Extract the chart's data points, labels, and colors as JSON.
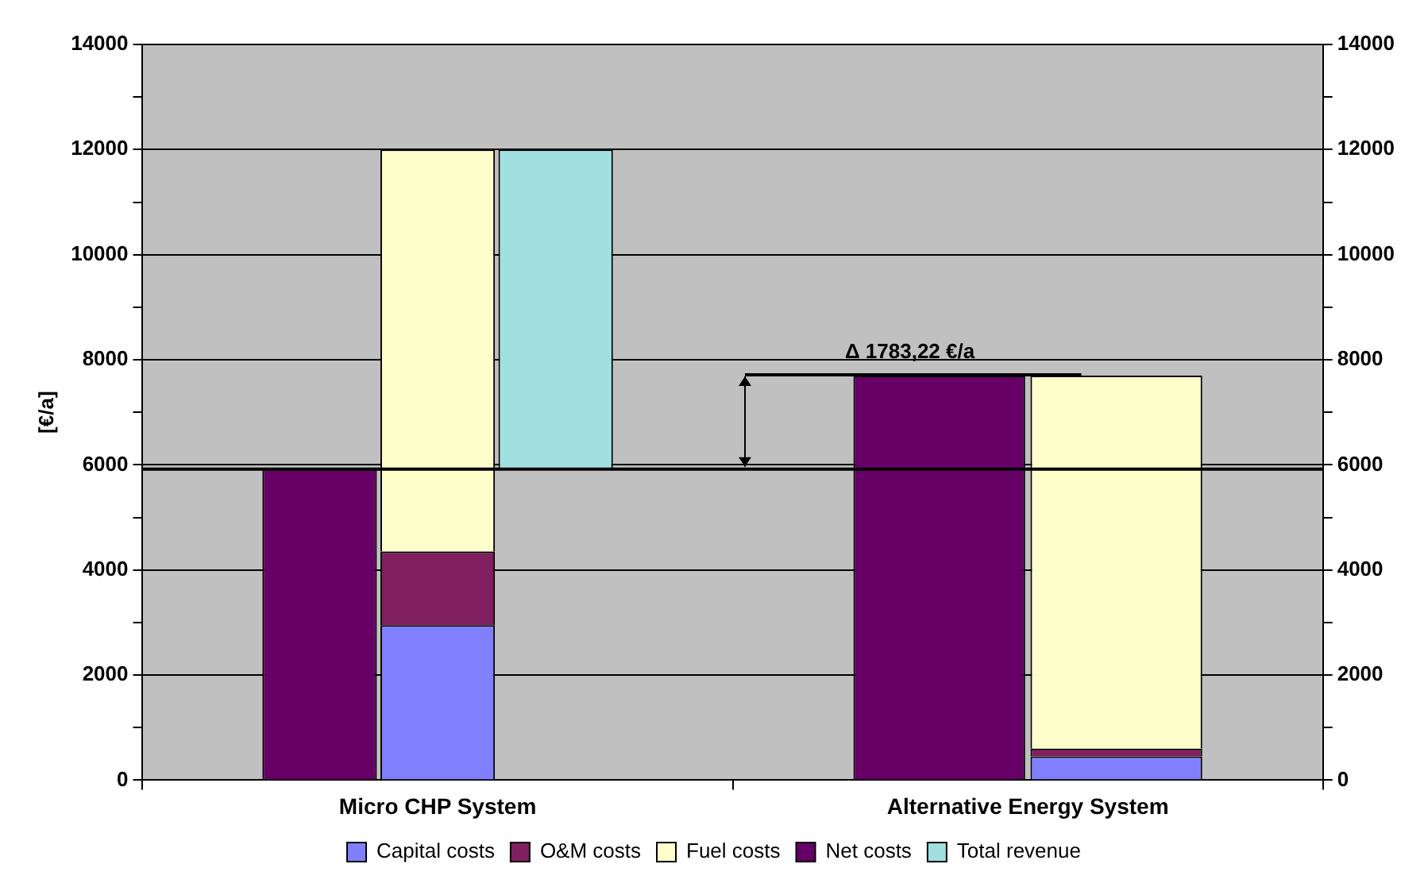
{
  "chart_data": {
    "type": "bar",
    "categories": [
      "Micro CHP System",
      "Alternative Energy System"
    ],
    "ylabel": "[€/a]",
    "series": [
      {
        "name": "Capital costs",
        "color": "#8080ff",
        "values": [
          2950,
          450
        ],
        "base": [
          0,
          0
        ]
      },
      {
        "name": "O&M costs",
        "color": "#802060",
        "values": [
          1400,
          150
        ],
        "base": [
          2950,
          450
        ]
      },
      {
        "name": "Fuel costs",
        "color": "#ffffcc",
        "values": [
          7650,
          7100
        ],
        "base": [
          4350,
          600
        ]
      },
      {
        "name": "Net costs",
        "color": "#660066",
        "values": [
          5920,
          7700
        ],
        "base": [
          0,
          0
        ]
      },
      {
        "name": "Total revenue",
        "color": "#a0e0e0",
        "values": [
          6080,
          null
        ],
        "base": [
          5920,
          null
        ]
      }
    ],
    "ylim": [
      0,
      14000
    ],
    "yticks": [
      0,
      {
        "value": 1000,
        "label": null
      },
      2000,
      {
        "value": 3000,
        "label": null
      },
      4000,
      {
        "value": 5000,
        "label": null
      },
      6000,
      {
        "value": 7000,
        "label": null
      },
      8000,
      {
        "value": 9000,
        "label": null
      },
      10000,
      {
        "value": 11000,
        "label": null
      },
      12000,
      {
        "value": 13000,
        "label": null
      },
      14000
    ],
    "y2lim": [
      0,
      14000
    ],
    "y2ticks": [
      0,
      {
        "value": 1000,
        "label": null
      },
      2000,
      {
        "value": 3000,
        "label": null
      },
      4000,
      {
        "value": 5000,
        "label": null
      },
      6000,
      {
        "value": 7000,
        "label": null
      },
      8000,
      {
        "value": 9000,
        "label": null
      },
      10000,
      {
        "value": 11000,
        "label": null
      },
      12000,
      {
        "value": 13000,
        "label": null
      },
      14000
    ],
    "grid": "y",
    "legend": "bottom",
    "ref_lines": [
      {
        "axis": "y",
        "value": 5920
      }
    ],
    "annotations": [
      {
        "text": "Δ 1783,22 €/a",
        "x": "Alternative Energy System",
        "y": 7700
      }
    ]
  }
}
